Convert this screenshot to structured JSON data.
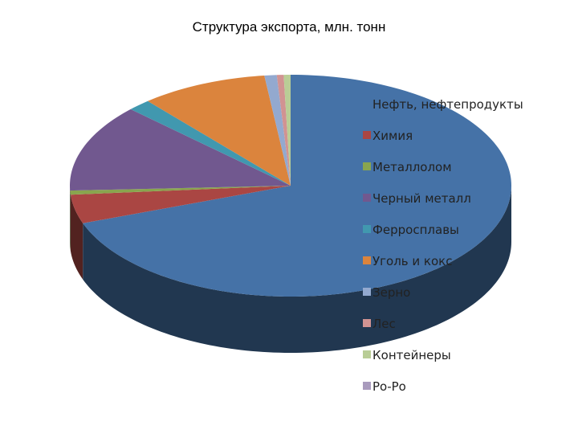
{
  "chart_data": {
    "type": "pie",
    "style": "3d",
    "title": "Структура экспорта, млн. тонн",
    "legend_position": "right",
    "slices": [
      {
        "label": "Нефть, нефтепродукты",
        "value": 69.5,
        "color": "#4572A7"
      },
      {
        "label": "Химия",
        "value": 4.2,
        "color": "#AA4643"
      },
      {
        "label": "Металлолом",
        "value": 0.6,
        "color": "#89A54E"
      },
      {
        "label": "Черный металл",
        "value": 12.8,
        "color": "#71588F"
      },
      {
        "label": "Ферросплавы",
        "value": 1.7,
        "color": "#4198AF"
      },
      {
        "label": "Уголь и кокс",
        "value": 9.3,
        "color": "#DB843D"
      },
      {
        "label": "Зерно",
        "value": 0.9,
        "color": "#93A9CF"
      },
      {
        "label": "Лес",
        "value": 0.5,
        "color": "#D19392"
      },
      {
        "label": "Контейнеры",
        "value": 0.5,
        "color": "#B9CD96"
      },
      {
        "label": "Ро-Ро",
        "value": 0.0,
        "color": "#A99BBD"
      }
    ]
  }
}
